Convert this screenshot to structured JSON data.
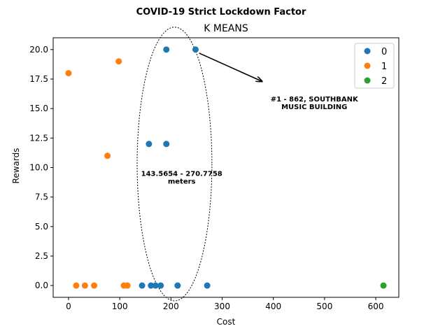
{
  "chart_data": {
    "type": "scatter",
    "suptitle": "COVID-19 Strict Lockdown Factor",
    "title": "K MEANS",
    "xlabel": "Cost",
    "ylabel": "Rewards",
    "xlim": [
      -30,
      645
    ],
    "ylim": [
      -1,
      21
    ],
    "xticks": [
      0,
      100,
      200,
      300,
      400,
      500,
      600
    ],
    "yticks": [
      0.0,
      2.5,
      5.0,
      7.5,
      10.0,
      12.5,
      15.0,
      17.5,
      20.0
    ],
    "xtick_labels": [
      "0",
      "100",
      "200",
      "300",
      "400",
      "500",
      "600"
    ],
    "ytick_labels": [
      "0.0",
      "2.5",
      "5.0",
      "7.5",
      "10.0",
      "12.5",
      "15.0",
      "17.5",
      "20.0"
    ],
    "grid": false,
    "legend_position": "top-right",
    "series": [
      {
        "name": "0",
        "color": "#1f77b4",
        "points": [
          [
            143.6,
            0
          ],
          [
            161,
            0
          ],
          [
            170,
            0
          ],
          [
            180,
            0
          ],
          [
            213,
            0
          ],
          [
            270.8,
            0
          ],
          [
            157,
            12
          ],
          [
            191,
            12
          ],
          [
            191,
            20
          ],
          [
            248,
            20
          ]
        ]
      },
      {
        "name": "1",
        "color": "#ff7f0e",
        "points": [
          [
            0,
            18
          ],
          [
            15,
            0
          ],
          [
            32,
            0
          ],
          [
            50,
            0
          ],
          [
            108,
            0
          ],
          [
            115,
            0
          ],
          [
            76,
            11
          ],
          [
            98,
            19
          ]
        ]
      },
      {
        "name": "2",
        "color": "#2ca02c",
        "points": [
          [
            615,
            0
          ]
        ]
      }
    ],
    "annotations": [
      {
        "text_lines": [
          "#1 - 862, SOUTHBANK",
          "MUSIC BUILDING"
        ],
        "arrow_from": [
          255,
          19.7
        ],
        "arrow_to": [
          378,
          17.3
        ],
        "text_at": [
          480,
          15.6
        ]
      },
      {
        "text_lines": [
          "143.5654 - 270.7758",
          "meters"
        ],
        "text_at": [
          221,
          9.3
        ]
      }
    ],
    "ellipse": {
      "cx": 207,
      "cy": 10.3,
      "rx": 73,
      "ry": 11.6
    }
  }
}
